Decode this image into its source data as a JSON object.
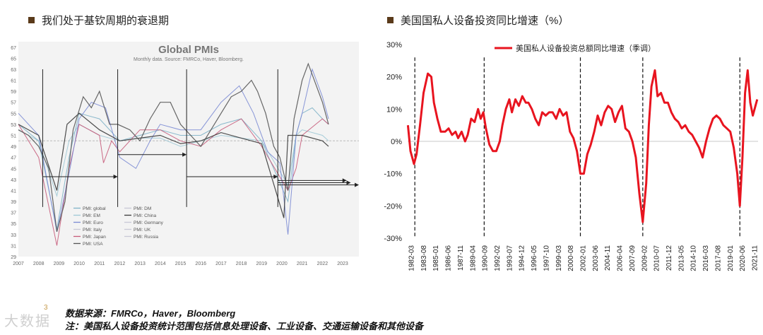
{
  "left_title": "我们处于基钦周期的衰退期",
  "right_title": "美国国私人设备投资同比增速（%）",
  "footer": {
    "page_number": "3",
    "source": "数据来源：FMRCo，Haver，Bloomberg",
    "note": "注：美国私人设备投资统计范围包括信息处理设备、工业设备、交通运输设备和其他设备",
    "watermark": "大数据"
  },
  "colors": {
    "usa": "#555555",
    "china": "#3a3a3a",
    "euro": "#7b8bd4",
    "japan": "#c75b7a",
    "em": "#9ec9d6",
    "global": "#7fb3c8",
    "red_line": "#e8141f",
    "title_bullet": "#5a3a1a"
  },
  "chart_data": [
    {
      "type": "line",
      "title": "Global PMIs",
      "subtitle": "Monthly data.  Source: FMRCo, Haver, Bloomberg.",
      "x_ticks": [
        "2007",
        "2008",
        "2009",
        "2010",
        "2011",
        "2012",
        "2013",
        "2014",
        "2015",
        "2016",
        "2017",
        "2018",
        "2019",
        "2020",
        "2021",
        "2022",
        "2023"
      ],
      "y_ticks": [
        29,
        31,
        33,
        35,
        37,
        39,
        41,
        43,
        45,
        47,
        49,
        51,
        53,
        55,
        57,
        59,
        61,
        63,
        65,
        67
      ],
      "ylim": [
        29,
        68
      ],
      "xlim": [
        2007,
        2023.8
      ],
      "reference_line": 50,
      "cycle_markers": [
        2008.2,
        2011.9,
        2015.3,
        2019.8
      ],
      "arrows": [
        {
          "start": 2008.2,
          "end": 2011.9,
          "y": 43.5
        },
        {
          "start": 2011.9,
          "end": 2015.3,
          "y": 47.5
        },
        {
          "start": 2015.3,
          "end": 2019.8,
          "y": 43.5
        },
        {
          "start": 2019.8,
          "end": 2023.2,
          "y": 42.8
        },
        {
          "start": 2019.8,
          "end": 2023.4,
          "y": 42.4
        },
        {
          "start": 2019.8,
          "end": 2023.8,
          "y": 42.0
        }
      ],
      "legend": [
        "PMI: global",
        "PMI: DM",
        "PMI: EM",
        "PMI: China",
        "PMI: Euro",
        "PMI: Germany",
        "PMI: Italy",
        "PMI: UK",
        "PMI: Japan",
        "PMI: Russia",
        "PMI: USA"
      ],
      "series": [
        {
          "name": "PMI: USA",
          "x": [
            2007,
            2007.5,
            2008,
            2008.5,
            2008.9,
            2009.3,
            2009.7,
            2010.2,
            2010.6,
            2011,
            2011.5,
            2011.9,
            2012.5,
            2013,
            2013.5,
            2014,
            2014.5,
            2015,
            2015.5,
            2016,
            2016.5,
            2017,
            2017.5,
            2018,
            2018.5,
            2018.8,
            2019.2,
            2019.6,
            2019.9,
            2020.3,
            2020.6,
            2021,
            2021.3,
            2021.7,
            2022,
            2022.3
          ],
          "y": [
            52,
            51,
            49,
            45,
            33.5,
            39,
            52,
            58,
            56,
            59,
            53,
            53,
            52,
            50,
            54,
            57,
            57,
            53,
            51,
            49,
            52,
            55,
            58,
            59,
            61,
            59,
            55,
            49,
            47,
            41,
            54,
            61,
            64,
            60,
            57,
            53
          ]
        },
        {
          "name": "PMI: China",
          "x": [
            2007,
            2008,
            2008.9,
            2009.4,
            2010,
            2011,
            2012,
            2013,
            2014,
            2015,
            2016,
            2017,
            2018,
            2019,
            2020.1,
            2020.3,
            2021,
            2022,
            2022.3
          ],
          "y": [
            53,
            51,
            41,
            53,
            55,
            52,
            50,
            50.5,
            51,
            49.5,
            50,
            51.5,
            50.5,
            49.5,
            36,
            51,
            51,
            50,
            49
          ]
        },
        {
          "name": "PMI: Euro",
          "x": [
            2007,
            2008,
            2008.9,
            2009.5,
            2010,
            2010.6,
            2011.3,
            2012,
            2012.8,
            2013.5,
            2014,
            2015,
            2016,
            2017,
            2017.9,
            2018.6,
            2019.3,
            2019.9,
            2020.3,
            2020.7,
            2021,
            2021.5,
            2022,
            2022.3
          ],
          "y": [
            55,
            51,
            33.5,
            44,
            54,
            57,
            56,
            47,
            45,
            50,
            53,
            52,
            52,
            57,
            60,
            55,
            48,
            46,
            33,
            51,
            55,
            63,
            58,
            54
          ]
        },
        {
          "name": "PMI: Japan",
          "x": [
            2007,
            2008,
            2008.9,
            2009.5,
            2010,
            2011,
            2011.2,
            2011.6,
            2012,
            2013,
            2014,
            2015,
            2016,
            2017,
            2018,
            2019,
            2020.3,
            2020.7,
            2021,
            2022,
            2022.3
          ],
          "y": [
            53,
            47,
            31,
            45,
            53,
            51,
            46,
            50,
            48,
            52,
            52,
            50,
            49,
            52,
            54,
            49,
            41,
            45,
            51,
            54,
            53
          ]
        },
        {
          "name": "PMI: EM",
          "x": [
            2007,
            2008,
            2008.9,
            2009.5,
            2010,
            2011,
            2012,
            2013,
            2014,
            2015,
            2016,
            2017,
            2018,
            2019,
            2020.3,
            2020.7,
            2021,
            2022,
            2022.3
          ],
          "y": [
            52,
            50,
            40,
            50,
            53,
            51,
            50,
            50.5,
            50.5,
            49,
            50,
            51,
            50.5,
            50,
            42,
            51,
            52,
            51,
            50
          ]
        },
        {
          "name": "PMI: global",
          "x": [
            2007,
            2008,
            2008.9,
            2009.5,
            2010,
            2011,
            2012,
            2013,
            2014,
            2015,
            2016,
            2017,
            2018,
            2019,
            2020.3,
            2020.7,
            2021,
            2021.5,
            2022,
            2022.3
          ],
          "y": [
            53,
            50,
            34,
            47,
            55,
            54,
            50,
            51,
            52,
            51,
            51,
            53,
            54,
            50,
            39,
            51,
            55,
            56,
            54,
            53
          ]
        }
      ]
    },
    {
      "type": "line",
      "title": "",
      "ylabel": "",
      "x_ticks": [
        "1982-03",
        "1983-08",
        "1985-01",
        "1986-06",
        "1987-11",
        "1989-04",
        "1990-09",
        "1992-02",
        "1993-07",
        "1994-12",
        "1996-05",
        "1997-10",
        "1999-03",
        "2000-08",
        "2002-01",
        "2003-06",
        "2004-11",
        "2006-04",
        "2007-09",
        "2009-02",
        "2010-07",
        "2011-12",
        "2013-05",
        "2014-10",
        "2016-03",
        "2017-08",
        "2019-01",
        "2020-06",
        "2021-11"
      ],
      "y_ticks": [
        "-30%",
        "-20%",
        "-10%",
        "0%",
        "10%",
        "20%",
        "30%"
      ],
      "ylim": [
        -30,
        30
      ],
      "xlim": [
        1982.17,
        2022.6
      ],
      "reference_line": 0,
      "cycle_markers": [
        1983.0,
        1991.0,
        2002.1,
        2009.3,
        2020.5
      ],
      "series": [
        {
          "name": "美国私人设备投资总额同比增速（季调）",
          "x": [
            1982.2,
            1982.5,
            1982.9,
            1983.2,
            1983.6,
            1984.0,
            1984.5,
            1984.9,
            1985.2,
            1985.6,
            1986.0,
            1986.5,
            1986.9,
            1987.3,
            1987.7,
            1988.0,
            1988.4,
            1988.8,
            1989.1,
            1989.5,
            1989.9,
            1990.3,
            1990.6,
            1990.9,
            1991.2,
            1991.6,
            1992.0,
            1992.4,
            1992.8,
            1993.1,
            1993.5,
            1993.9,
            1994.2,
            1994.6,
            1995.0,
            1995.4,
            1995.8,
            1996.1,
            1996.5,
            1996.9,
            1997.3,
            1997.7,
            1998.1,
            1998.5,
            1998.9,
            1999.3,
            1999.7,
            2000.1,
            2000.5,
            2000.9,
            2001.3,
            2001.7,
            2002.1,
            2002.5,
            2002.9,
            2003.3,
            2003.7,
            2004.1,
            2004.5,
            2004.9,
            2005.3,
            2005.7,
            2006.1,
            2006.5,
            2006.9,
            2007.3,
            2007.7,
            2008.1,
            2008.5,
            2008.9,
            2009.3,
            2009.7,
            2010.0,
            2010.3,
            2010.7,
            2011.0,
            2011.4,
            2011.8,
            2012.2,
            2012.6,
            2013.0,
            2013.4,
            2013.8,
            2014.2,
            2014.6,
            2015.0,
            2015.4,
            2015.8,
            2016.2,
            2016.6,
            2017.0,
            2017.4,
            2017.8,
            2018.2,
            2018.6,
            2019.0,
            2019.4,
            2019.8,
            2020.2,
            2020.5,
            2020.8,
            2021.1,
            2021.4,
            2021.7,
            2022.0,
            2022.3,
            2022.5
          ],
          "y": [
            5,
            -3,
            -7,
            -4,
            5,
            15,
            21,
            20,
            12,
            7,
            3,
            3,
            4,
            2,
            3,
            1,
            3,
            0,
            2,
            7,
            6,
            10,
            7,
            9,
            4,
            -1,
            -3,
            -3,
            0,
            5,
            10,
            13,
            9,
            13,
            11,
            14,
            12,
            12,
            10,
            7,
            5,
            9,
            8,
            9,
            9,
            7,
            10,
            8,
            9,
            3,
            1,
            -3,
            -10,
            -10,
            -4,
            -1,
            3,
            8,
            5,
            9,
            11,
            10,
            6,
            9,
            11,
            4,
            3,
            0,
            -5,
            -16,
            -25,
            -13,
            5,
            17,
            22,
            14,
            15,
            12,
            12,
            9,
            7,
            6,
            4,
            5,
            3,
            2,
            0,
            -2,
            -5,
            0,
            4,
            7,
            8,
            7,
            5,
            4,
            3,
            -2,
            -10,
            -20,
            -5,
            15,
            22,
            12,
            8,
            11,
            13
          ]
        }
      ]
    }
  ]
}
